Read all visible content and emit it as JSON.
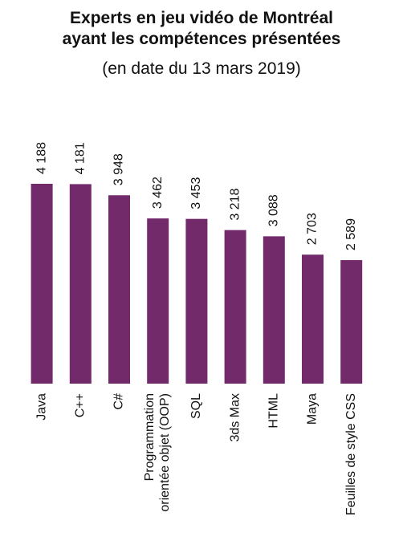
{
  "chart_data": {
    "type": "bar",
    "title": "Experts en jeu vidéo de Montréal\nayant les compétences présentées",
    "subtitle": "(en date du 13 mars 2019)",
    "categories": [
      "Java",
      "C++",
      "C#",
      "Programmation\norientée objet (OOP)",
      "SQL",
      "3ds Max",
      "HTML",
      "Maya",
      "Feuilles de style CSS"
    ],
    "values": [
      4188,
      4181,
      3948,
      3462,
      3453,
      3218,
      3088,
      2703,
      2589
    ],
    "value_labels": [
      "4 188",
      "4 181",
      "3 948",
      "3 462",
      "3 453",
      "3 218",
      "3 088",
      "2 703",
      "2 589"
    ],
    "color": "#722a6a"
  }
}
